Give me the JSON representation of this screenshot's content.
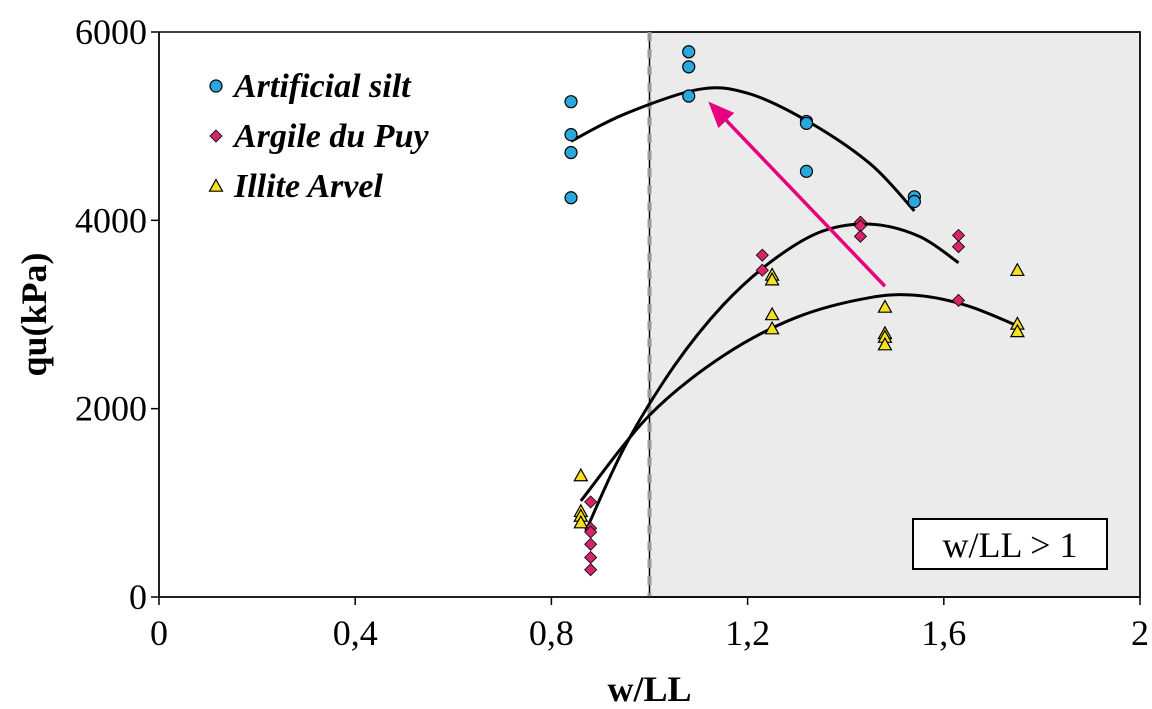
{
  "chart_data": {
    "type": "scatter",
    "title": "",
    "xlabel": "w/LL",
    "ylabel": "qu(kPa)",
    "xlim": [
      0,
      2
    ],
    "ylim": [
      0,
      6000
    ],
    "x_ticks": [
      0,
      0.4,
      0.8,
      1.2,
      1.6,
      2
    ],
    "x_tick_labels": [
      "0",
      "0,4",
      "0,8",
      "1,2",
      "1,6",
      "2"
    ],
    "y_ticks": [
      0,
      2000,
      4000,
      6000
    ],
    "y_tick_labels": [
      "0",
      "2000",
      "4000",
      "6000"
    ],
    "grid": false,
    "legend_position": "top-left",
    "shaded_region": {
      "x_from": 1.0,
      "x_to": 2.0,
      "color": "#ebebeb",
      "label": "w/LL > 1",
      "label_position": "bottom-right"
    },
    "reference_line": {
      "x": 1.0,
      "style": "dashed",
      "color": "#999999"
    },
    "arrow": {
      "from": [
        1.48,
        3300
      ],
      "to": [
        1.12,
        5260
      ],
      "color": "#e6007e"
    },
    "series": [
      {
        "name": "Artificial silt",
        "marker": "circle",
        "color": "#2aa7dc",
        "points": [
          [
            0.84,
            5260
          ],
          [
            0.84,
            4910
          ],
          [
            0.84,
            4720
          ],
          [
            0.84,
            4240
          ],
          [
            1.08,
            5790
          ],
          [
            1.08,
            5630
          ],
          [
            1.08,
            5320
          ],
          [
            1.32,
            5050
          ],
          [
            1.32,
            5030
          ],
          [
            1.32,
            4520
          ],
          [
            1.54,
            4250
          ],
          [
            1.54,
            4200
          ]
        ],
        "trend": [
          [
            0.84,
            4840
          ],
          [
            0.95,
            5130
          ],
          [
            1.1,
            5390
          ],
          [
            1.2,
            5350
          ],
          [
            1.32,
            5060
          ],
          [
            1.45,
            4600
          ],
          [
            1.54,
            4100
          ]
        ]
      },
      {
        "name": "Argile du Puy",
        "marker": "diamond",
        "color": "#d6246c",
        "points": [
          [
            0.88,
            1010
          ],
          [
            0.88,
            730
          ],
          [
            0.88,
            690
          ],
          [
            0.88,
            560
          ],
          [
            0.88,
            420
          ],
          [
            0.88,
            290
          ],
          [
            1.23,
            3630
          ],
          [
            1.23,
            3470
          ],
          [
            1.43,
            3980
          ],
          [
            1.43,
            3940
          ],
          [
            1.43,
            3830
          ],
          [
            1.63,
            3840
          ],
          [
            1.63,
            3720
          ],
          [
            1.63,
            3150
          ]
        ],
        "trend": [
          [
            0.87,
            700
          ],
          [
            0.95,
            1600
          ],
          [
            1.05,
            2450
          ],
          [
            1.15,
            3100
          ],
          [
            1.25,
            3570
          ],
          [
            1.35,
            3880
          ],
          [
            1.45,
            3960
          ],
          [
            1.55,
            3830
          ],
          [
            1.63,
            3550
          ]
        ]
      },
      {
        "name": "Illite Arvel",
        "marker": "triangle",
        "color": "#f5e11f",
        "points": [
          [
            0.86,
            1290
          ],
          [
            0.86,
            910
          ],
          [
            0.86,
            860
          ],
          [
            0.86,
            790
          ],
          [
            1.25,
            3420
          ],
          [
            1.25,
            3370
          ],
          [
            1.25,
            3000
          ],
          [
            1.25,
            2850
          ],
          [
            1.48,
            3080
          ],
          [
            1.48,
            2800
          ],
          [
            1.48,
            2760
          ],
          [
            1.48,
            2680
          ],
          [
            1.75,
            3470
          ],
          [
            1.75,
            2900
          ],
          [
            1.75,
            2820
          ]
        ],
        "trend": [
          [
            0.86,
            1020
          ],
          [
            1.0,
            1930
          ],
          [
            1.15,
            2560
          ],
          [
            1.3,
            2970
          ],
          [
            1.45,
            3180
          ],
          [
            1.55,
            3200
          ],
          [
            1.65,
            3090
          ],
          [
            1.75,
            2880
          ]
        ]
      }
    ]
  }
}
